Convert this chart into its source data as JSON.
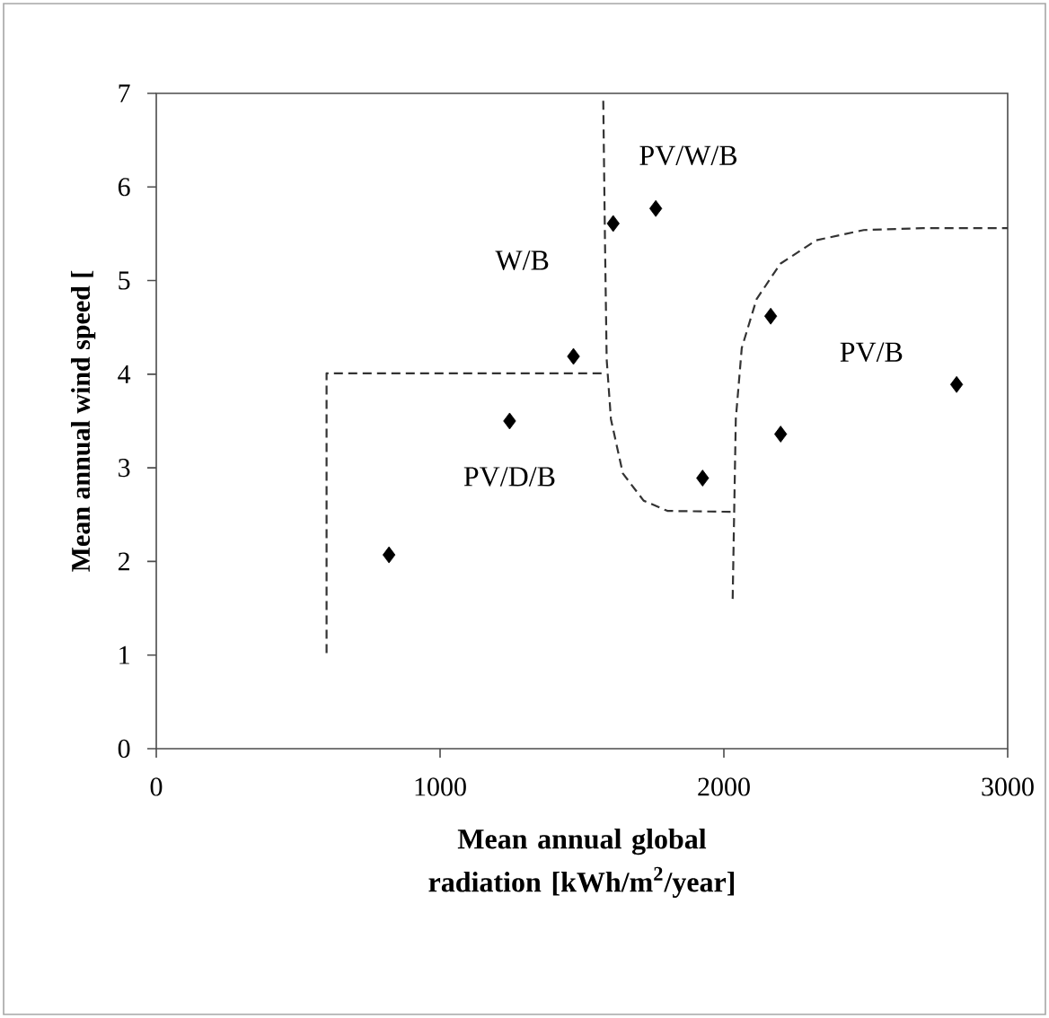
{
  "chart_data": {
    "type": "scatter",
    "xlabel": "Mean annual global radiation [kWh/m$^{2}$/year]",
    "ylabel": "Mean annual wind speed [",
    "xlim": [
      0,
      3000
    ],
    "xticks": [
      0,
      1000,
      2000,
      3000
    ],
    "ylim": [
      0,
      7
    ],
    "yticks": [
      0,
      1,
      2,
      3,
      4,
      5,
      6,
      7
    ],
    "series": [
      {
        "color": "#000000",
        "marker": "diamond",
        "x": [
          820,
          1245,
          1470,
          1610,
          1760,
          1925,
          2165,
          2200,
          2820
        ],
        "values": [
          2.07,
          3.5,
          4.19,
          5.61,
          5.77,
          2.89,
          4.62,
          3.36,
          3.89
        ]
      },
      {
        "type": "line",
        "color": "#333333",
        "line_style": "dashed",
        "x": [
          600,
          600,
          1580
        ],
        "values": [
          1.02,
          4.01,
          4.01
        ]
      },
      {
        "type": "line",
        "color": "#333333",
        "line_style": "dashed",
        "x": [
          1575,
          1581,
          1587,
          1602,
          1644,
          1717,
          1801,
          2021,
          2031
        ],
        "values": [
          6.92,
          5.43,
          4.16,
          3.52,
          2.94,
          2.65,
          2.54,
          2.53,
          2.53
        ]
      },
      {
        "type": "line",
        "color": "#333333",
        "line_style": "dashed",
        "x": [
          2031,
          2042,
          2063,
          2115,
          2199,
          2325,
          2493,
          2702,
          3000
        ],
        "values": [
          1.6,
          3.52,
          4.28,
          4.8,
          5.18,
          5.43,
          5.54,
          5.56,
          5.56
        ]
      }
    ],
    "annotations": [
      "PV/W/B",
      "W/B",
      "PV/D/B",
      "PV/B"
    ]
  }
}
